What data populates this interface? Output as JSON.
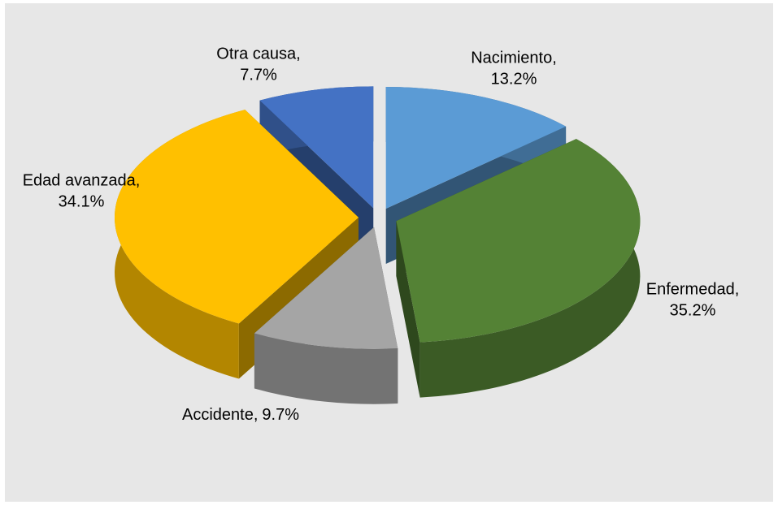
{
  "chart_data": {
    "type": "pie",
    "style": "3d-exploded",
    "categories": [
      "Nacimiento,",
      "Enfermedad,",
      "Accidente,",
      "Edad avanzada,",
      "Otra causa,"
    ],
    "values": [
      13.2,
      35.2,
      9.7,
      34.1,
      7.7
    ],
    "value_labels": [
      "13.2%",
      "35.2%",
      "9.7%",
      "34.1%",
      "7.7%"
    ],
    "colors": [
      "#5b9bd5",
      "#548235",
      "#a5a5a5",
      "#ffc000",
      "#4472c4"
    ]
  }
}
